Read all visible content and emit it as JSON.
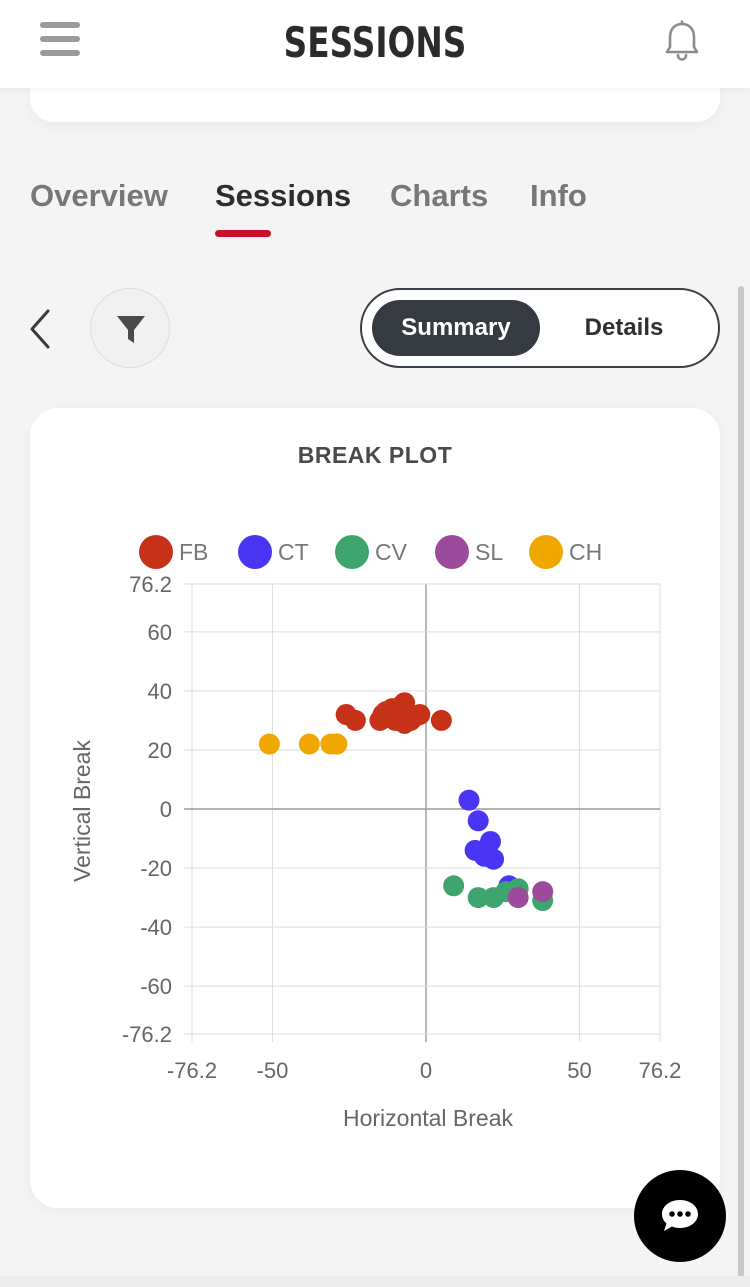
{
  "header": {
    "title": "SESSIONS",
    "menu_icon": "hamburger-menu-icon",
    "bell_icon": "bell-icon"
  },
  "tabs": [
    {
      "label": "Overview",
      "active": false
    },
    {
      "label": "Sessions",
      "active": true
    },
    {
      "label": "Charts",
      "active": false
    },
    {
      "label": "Info",
      "active": false
    }
  ],
  "accent_color": "#c8102e",
  "controls": {
    "back_icon": "chevron-left-icon",
    "filter_icon": "filter-icon",
    "view_toggle": {
      "options": [
        "Summary",
        "Details"
      ],
      "selected": "Summary"
    }
  },
  "chart_card": {
    "title": "BREAK PLOT"
  },
  "chart_data": {
    "type": "scatter",
    "title": "BREAK PLOT",
    "xlabel": "Horizontal Break",
    "ylabel": "Vertical Break",
    "xlim": [
      -76.2,
      76.2
    ],
    "ylim": [
      -76.2,
      76.2
    ],
    "x_ticks": [
      "-76.2",
      "-50",
      "0",
      "50",
      "76.2"
    ],
    "y_ticks": [
      "76.2",
      "60",
      "40",
      "20",
      "0",
      "-20",
      "-40",
      "-60",
      "-76.2"
    ],
    "grid": true,
    "legend": "top",
    "series": [
      {
        "name": "FB",
        "color": "#c53218",
        "points": [
          [
            -26,
            32
          ],
          [
            -23,
            30
          ],
          [
            -15,
            30
          ],
          [
            -14,
            32
          ],
          [
            -13,
            33
          ],
          [
            -12,
            31
          ],
          [
            -11,
            34
          ],
          [
            -10,
            30
          ],
          [
            -9,
            31
          ],
          [
            -8,
            35
          ],
          [
            -7,
            29
          ],
          [
            -7,
            36
          ],
          [
            -6,
            32
          ],
          [
            -5,
            30
          ],
          [
            -4,
            31
          ],
          [
            -2,
            32
          ],
          [
            5,
            30
          ]
        ]
      },
      {
        "name": "CT",
        "color": "#4b35f5",
        "points": [
          [
            14,
            3
          ],
          [
            17,
            -4
          ],
          [
            16,
            -14
          ],
          [
            19,
            -16
          ],
          [
            21,
            -11
          ],
          [
            22,
            -17
          ],
          [
            27,
            -26
          ]
        ]
      },
      {
        "name": "CV",
        "color": "#3ea56f",
        "points": [
          [
            9,
            -26
          ],
          [
            17,
            -30
          ],
          [
            22,
            -30
          ],
          [
            26,
            -28
          ],
          [
            30,
            -27
          ],
          [
            38,
            -31
          ]
        ]
      },
      {
        "name": "SL",
        "color": "#9c4a9c",
        "points": [
          [
            30,
            -30
          ],
          [
            38,
            -28
          ]
        ]
      },
      {
        "name": "CH",
        "color": "#f0a800",
        "points": [
          [
            -51,
            22
          ],
          [
            -38,
            22
          ],
          [
            -31,
            22
          ],
          [
            -29,
            22
          ]
        ]
      }
    ]
  },
  "chat_button": {
    "icon": "chat-bubble-icon"
  }
}
